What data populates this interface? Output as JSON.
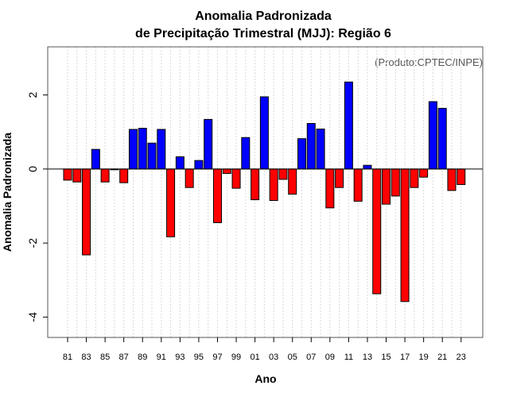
{
  "chart_data": {
    "type": "bar",
    "title_line1": "Anomalia Padronizada",
    "title_line2": "de Precipitação Trimestral (MJJ): Região 6",
    "xlabel": "Ano",
    "ylabel": "Anomalia Padronizada",
    "credit": "(Produto:CPTEC/INPE)",
    "ylim": [
      -4.55,
      3.3
    ],
    "yticks": [
      -4,
      -2,
      0,
      2
    ],
    "ytick_labels": [
      "-4",
      "-2",
      "0",
      "2"
    ],
    "years": [
      "81",
      "82",
      "83",
      "84",
      "85",
      "86",
      "87",
      "88",
      "89",
      "90",
      "91",
      "92",
      "93",
      "94",
      "95",
      "96",
      "97",
      "98",
      "99",
      "00",
      "01",
      "02",
      "03",
      "04",
      "05",
      "06",
      "07",
      "08",
      "09",
      "10",
      "11",
      "12",
      "13",
      "14",
      "15",
      "16",
      "17",
      "18",
      "19",
      "20",
      "21",
      "22",
      "23"
    ],
    "xtick_labels": [
      "81",
      "83",
      "85",
      "87",
      "89",
      "91",
      "93",
      "95",
      "97",
      "99",
      "01",
      "03",
      "05",
      "07",
      "09",
      "11",
      "13",
      "15",
      "17",
      "19",
      "21",
      "23"
    ],
    "values": [
      -0.3,
      -0.35,
      -2.32,
      0.53,
      -0.35,
      -0.02,
      -0.37,
      1.07,
      1.1,
      0.7,
      1.07,
      -1.83,
      0.33,
      -0.5,
      0.23,
      1.34,
      -1.45,
      -0.12,
      -0.52,
      0.85,
      -0.83,
      1.95,
      -0.85,
      -0.28,
      -0.68,
      0.82,
      1.23,
      1.08,
      -1.05,
      -0.5,
      2.35,
      -0.87,
      0.1,
      -3.37,
      -0.95,
      -0.73,
      -3.58,
      -0.5,
      -0.22,
      1.82,
      1.64,
      -0.58,
      -0.42
    ],
    "positive_color": "#0000ff",
    "negative_color": "#ff0000",
    "grid": true
  }
}
